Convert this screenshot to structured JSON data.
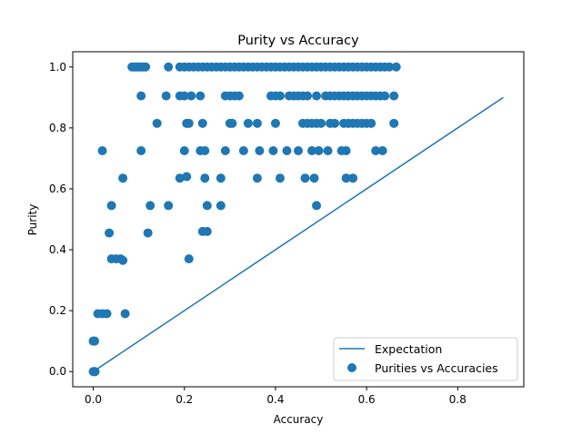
{
  "chart_data": {
    "type": "scatter",
    "title": "Purity vs Accuracy",
    "xlabel": "Accuracy",
    "ylabel": "Purity",
    "xlim": [
      -0.045,
      0.945
    ],
    "ylim": [
      -0.05,
      1.05
    ],
    "xticks": [
      "0.0",
      "0.2",
      "0.4",
      "0.6",
      "0.8"
    ],
    "yticks": [
      "0.0",
      "0.2",
      "0.4",
      "0.6",
      "0.8",
      "1.0"
    ],
    "grid": false,
    "legend_position": "lower-right",
    "color": "#1f77b4",
    "series": [
      {
        "name": "Expectation",
        "kind": "line",
        "x": [
          0.0,
          0.9
        ],
        "y": [
          0.0,
          0.9
        ]
      },
      {
        "name": "Purities vs Accuracies",
        "kind": "scatter",
        "points": [
          [
            0,
            0
          ],
          [
            0.002,
            0
          ],
          [
            0.004,
            0
          ],
          [
            0,
            0.1
          ],
          [
            0.003,
            0.1
          ],
          [
            0.01,
            0.19
          ],
          [
            0.02,
            0.19
          ],
          [
            0.03,
            0.19
          ],
          [
            0.07,
            0.19
          ],
          [
            0.04,
            0.37
          ],
          [
            0.05,
            0.37
          ],
          [
            0.06,
            0.37
          ],
          [
            0.065,
            0.365
          ],
          [
            0.21,
            0.37
          ],
          [
            0.035,
            0.455
          ],
          [
            0.12,
            0.455
          ],
          [
            0.24,
            0.46
          ],
          [
            0.25,
            0.46
          ],
          [
            0.04,
            0.545
          ],
          [
            0.125,
            0.545
          ],
          [
            0.165,
            0.545
          ],
          [
            0.25,
            0.545
          ],
          [
            0.28,
            0.545
          ],
          [
            0.49,
            0.545
          ],
          [
            0.065,
            0.635
          ],
          [
            0.19,
            0.635
          ],
          [
            0.205,
            0.64
          ],
          [
            0.245,
            0.635
          ],
          [
            0.28,
            0.635
          ],
          [
            0.36,
            0.635
          ],
          [
            0.41,
            0.635
          ],
          [
            0.465,
            0.635
          ],
          [
            0.485,
            0.635
          ],
          [
            0.555,
            0.635
          ],
          [
            0.57,
            0.635
          ],
          [
            0.02,
            0.725
          ],
          [
            0.105,
            0.725
          ],
          [
            0.2,
            0.725
          ],
          [
            0.235,
            0.725
          ],
          [
            0.245,
            0.725
          ],
          [
            0.29,
            0.725
          ],
          [
            0.33,
            0.725
          ],
          [
            0.365,
            0.725
          ],
          [
            0.395,
            0.725
          ],
          [
            0.425,
            0.725
          ],
          [
            0.45,
            0.725
          ],
          [
            0.48,
            0.725
          ],
          [
            0.495,
            0.725
          ],
          [
            0.515,
            0.725
          ],
          [
            0.545,
            0.725
          ],
          [
            0.555,
            0.725
          ],
          [
            0.62,
            0.725
          ],
          [
            0.635,
            0.725
          ],
          [
            0.14,
            0.815
          ],
          [
            0.205,
            0.815
          ],
          [
            0.21,
            0.815
          ],
          [
            0.24,
            0.815
          ],
          [
            0.3,
            0.815
          ],
          [
            0.305,
            0.815
          ],
          [
            0.34,
            0.815
          ],
          [
            0.36,
            0.815
          ],
          [
            0.4,
            0.815
          ],
          [
            0.46,
            0.815
          ],
          [
            0.47,
            0.815
          ],
          [
            0.48,
            0.815
          ],
          [
            0.49,
            0.815
          ],
          [
            0.5,
            0.815
          ],
          [
            0.52,
            0.815
          ],
          [
            0.53,
            0.815
          ],
          [
            0.55,
            0.815
          ],
          [
            0.56,
            0.815
          ],
          [
            0.57,
            0.815
          ],
          [
            0.58,
            0.815
          ],
          [
            0.59,
            0.815
          ],
          [
            0.6,
            0.815
          ],
          [
            0.61,
            0.815
          ],
          [
            0.66,
            0.815
          ],
          [
            0.105,
            0.905
          ],
          [
            0.16,
            0.905
          ],
          [
            0.19,
            0.905
          ],
          [
            0.2,
            0.905
          ],
          [
            0.215,
            0.905
          ],
          [
            0.235,
            0.905
          ],
          [
            0.29,
            0.905
          ],
          [
            0.3,
            0.905
          ],
          [
            0.31,
            0.905
          ],
          [
            0.32,
            0.905
          ],
          [
            0.39,
            0.905
          ],
          [
            0.4,
            0.905
          ],
          [
            0.41,
            0.905
          ],
          [
            0.43,
            0.905
          ],
          [
            0.44,
            0.905
          ],
          [
            0.45,
            0.905
          ],
          [
            0.46,
            0.905
          ],
          [
            0.47,
            0.905
          ],
          [
            0.49,
            0.905
          ],
          [
            0.51,
            0.905
          ],
          [
            0.52,
            0.905
          ],
          [
            0.53,
            0.905
          ],
          [
            0.54,
            0.905
          ],
          [
            0.55,
            0.905
          ],
          [
            0.56,
            0.905
          ],
          [
            0.57,
            0.905
          ],
          [
            0.58,
            0.905
          ],
          [
            0.59,
            0.905
          ],
          [
            0.6,
            0.905
          ],
          [
            0.61,
            0.905
          ],
          [
            0.62,
            0.905
          ],
          [
            0.63,
            0.905
          ],
          [
            0.64,
            0.905
          ],
          [
            0.66,
            0.905
          ],
          [
            0.085,
            1.0
          ],
          [
            0.09,
            1.0
          ],
          [
            0.095,
            1.0
          ],
          [
            0.1,
            1.0
          ],
          [
            0.105,
            1.0
          ],
          [
            0.11,
            1.0
          ],
          [
            0.115,
            1.0
          ],
          [
            0.165,
            1.0
          ],
          [
            0.19,
            1.0
          ],
          [
            0.2,
            1.0
          ],
          [
            0.21,
            1.0
          ],
          [
            0.22,
            1.0
          ],
          [
            0.23,
            1.0
          ],
          [
            0.24,
            1.0
          ],
          [
            0.25,
            1.0
          ],
          [
            0.26,
            1.0
          ],
          [
            0.27,
            1.0
          ],
          [
            0.28,
            1.0
          ],
          [
            0.29,
            1.0
          ],
          [
            0.3,
            1.0
          ],
          [
            0.31,
            1.0
          ],
          [
            0.32,
            1.0
          ],
          [
            0.33,
            1.0
          ],
          [
            0.34,
            1.0
          ],
          [
            0.35,
            1.0
          ],
          [
            0.36,
            1.0
          ],
          [
            0.37,
            1.0
          ],
          [
            0.38,
            1.0
          ],
          [
            0.39,
            1.0
          ],
          [
            0.4,
            1.0
          ],
          [
            0.41,
            1.0
          ],
          [
            0.42,
            1.0
          ],
          [
            0.43,
            1.0
          ],
          [
            0.44,
            1.0
          ],
          [
            0.45,
            1.0
          ],
          [
            0.46,
            1.0
          ],
          [
            0.47,
            1.0
          ],
          [
            0.48,
            1.0
          ],
          [
            0.49,
            1.0
          ],
          [
            0.5,
            1.0
          ],
          [
            0.51,
            1.0
          ],
          [
            0.52,
            1.0
          ],
          [
            0.53,
            1.0
          ],
          [
            0.54,
            1.0
          ],
          [
            0.55,
            1.0
          ],
          [
            0.56,
            1.0
          ],
          [
            0.57,
            1.0
          ],
          [
            0.58,
            1.0
          ],
          [
            0.59,
            1.0
          ],
          [
            0.6,
            1.0
          ],
          [
            0.61,
            1.0
          ],
          [
            0.62,
            1.0
          ],
          [
            0.63,
            1.0
          ],
          [
            0.64,
            1.0
          ],
          [
            0.65,
            1.0
          ],
          [
            0.665,
            1.0
          ]
        ]
      }
    ]
  }
}
